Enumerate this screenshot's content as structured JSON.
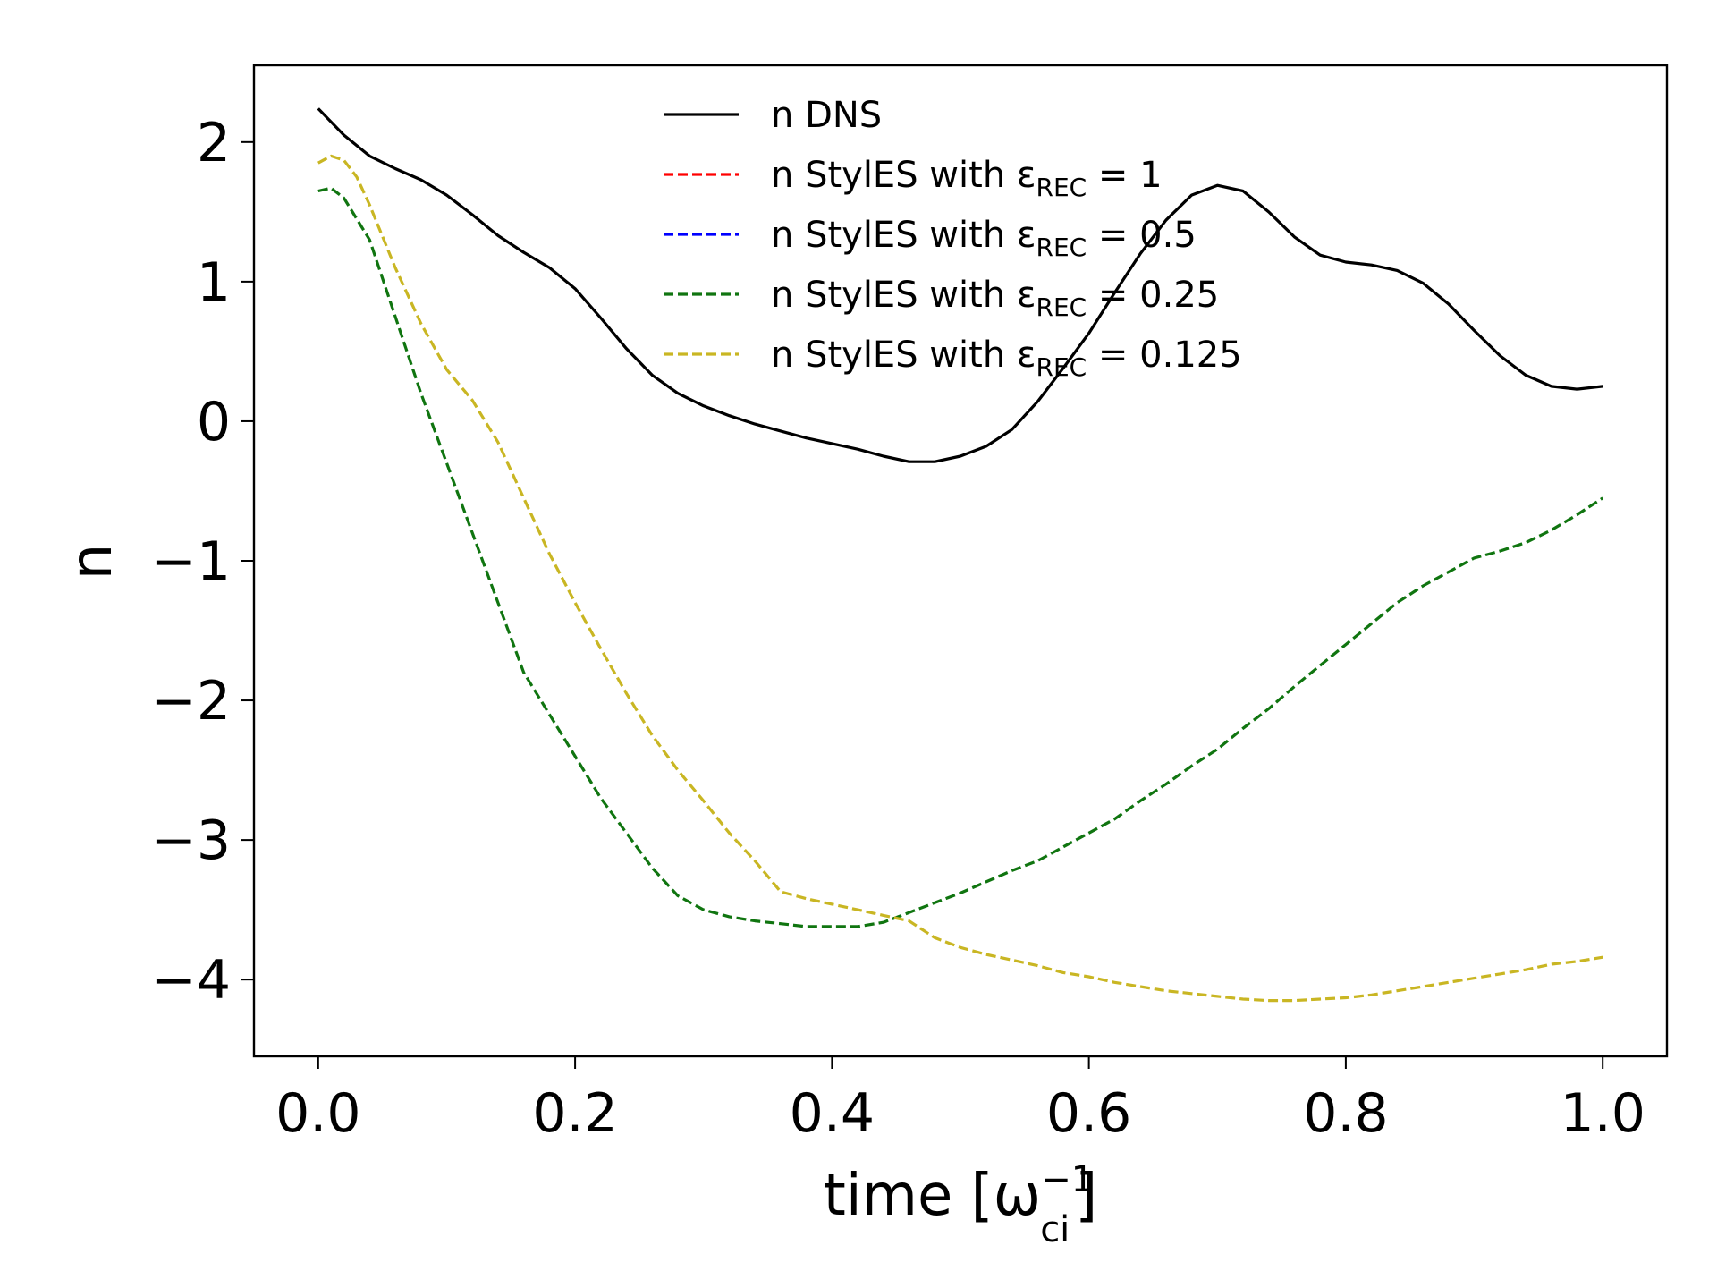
{
  "chart_data": {
    "type": "line",
    "xlabel": {
      "base": "time [ω",
      "sup": "−1",
      "sub": "ci",
      "close": "]"
    },
    "ylabel": "n",
    "xlim": [
      -0.05,
      1.05
    ],
    "ylim": [
      -4.55,
      2.55
    ],
    "x_ticks": [
      0.0,
      0.2,
      0.4,
      0.6,
      0.8,
      1.0
    ],
    "x_tick_labels": [
      "0.0",
      "0.2",
      "0.4",
      "0.6",
      "0.8",
      "1.0"
    ],
    "y_ticks": [
      2,
      1,
      0,
      -1,
      -2,
      -3,
      -4
    ],
    "y_tick_labels": [
      "2",
      "1",
      "0",
      "−1",
      "−2",
      "−3",
      "−4"
    ],
    "grid": false,
    "legend_position": "top-center",
    "series": [
      {
        "name": "n DNS",
        "legend": {
          "prefix": "n DNS",
          "sub": "",
          "suffix": ""
        },
        "color": "#000000",
        "dashed": false,
        "x": [
          0.0,
          0.02,
          0.04,
          0.06,
          0.08,
          0.1,
          0.12,
          0.14,
          0.16,
          0.18,
          0.2,
          0.22,
          0.24,
          0.26,
          0.28,
          0.3,
          0.32,
          0.34,
          0.36,
          0.38,
          0.4,
          0.42,
          0.44,
          0.46,
          0.48,
          0.5,
          0.52,
          0.54,
          0.56,
          0.58,
          0.6,
          0.62,
          0.64,
          0.66,
          0.68,
          0.7,
          0.72,
          0.74,
          0.76,
          0.78,
          0.8,
          0.82,
          0.84,
          0.86,
          0.88,
          0.9,
          0.92,
          0.94,
          0.96,
          0.98,
          1.0
        ],
        "y": [
          2.24,
          2.05,
          1.9,
          1.81,
          1.73,
          1.62,
          1.48,
          1.33,
          1.21,
          1.1,
          0.95,
          0.74,
          0.52,
          0.33,
          0.2,
          0.11,
          0.04,
          -0.02,
          -0.07,
          -0.12,
          -0.16,
          -0.2,
          -0.25,
          -0.29,
          -0.29,
          -0.25,
          -0.18,
          -0.06,
          0.14,
          0.38,
          0.63,
          0.92,
          1.2,
          1.44,
          1.62,
          1.69,
          1.65,
          1.5,
          1.32,
          1.19,
          1.14,
          1.12,
          1.08,
          0.99,
          0.84,
          0.65,
          0.47,
          0.33,
          0.25,
          0.23,
          0.25
        ]
      },
      {
        "name": "n StylES with ε_REC = 1",
        "legend": {
          "prefix": "n StylES with ε",
          "sub": "REC",
          "suffix": " = 1"
        },
        "color": "#ff0000",
        "dashed": true,
        "x": [],
        "y": []
      },
      {
        "name": "n StylES with ε_REC = 0.5",
        "legend": {
          "prefix": "n StylES with ε",
          "sub": "REC",
          "suffix": " = 0.5"
        },
        "color": "#0000ff",
        "dashed": true,
        "x": [],
        "y": []
      },
      {
        "name": "n StylES with ε_REC = 0.25",
        "legend": {
          "prefix": "n StylES with ε",
          "sub": "REC",
          "suffix": " = 0.25"
        },
        "color": "#107510",
        "dashed": true,
        "x": [
          0.0,
          0.01,
          0.02,
          0.04,
          0.06,
          0.08,
          0.1,
          0.12,
          0.14,
          0.16,
          0.18,
          0.2,
          0.22,
          0.24,
          0.26,
          0.28,
          0.3,
          0.32,
          0.34,
          0.36,
          0.38,
          0.4,
          0.42,
          0.44,
          0.46,
          0.48,
          0.5,
          0.52,
          0.54,
          0.56,
          0.58,
          0.6,
          0.62,
          0.64,
          0.66,
          0.68,
          0.7,
          0.72,
          0.74,
          0.76,
          0.78,
          0.8,
          0.82,
          0.84,
          0.86,
          0.88,
          0.9,
          0.92,
          0.94,
          0.96,
          0.98,
          1.0
        ],
        "y": [
          1.65,
          1.67,
          1.6,
          1.3,
          0.75,
          0.2,
          -0.3,
          -0.8,
          -1.3,
          -1.8,
          -2.1,
          -2.4,
          -2.7,
          -2.95,
          -3.2,
          -3.4,
          -3.5,
          -3.55,
          -3.58,
          -3.6,
          -3.62,
          -3.62,
          -3.62,
          -3.59,
          -3.52,
          -3.45,
          -3.38,
          -3.3,
          -3.22,
          -3.15,
          -3.05,
          -2.95,
          -2.85,
          -2.72,
          -2.6,
          -2.47,
          -2.35,
          -2.2,
          -2.06,
          -1.9,
          -1.75,
          -1.6,
          -1.45,
          -1.3,
          -1.18,
          -1.08,
          -0.98,
          -0.93,
          -0.87,
          -0.78,
          -0.67,
          -0.55
        ]
      },
      {
        "name": "n StylES with ε_REC = 0.125",
        "legend": {
          "prefix": "n StylES with ε",
          "sub": "REC",
          "suffix": " = 0.125"
        },
        "color": "#c9b623",
        "dashed": true,
        "x": [
          0.0,
          0.01,
          0.02,
          0.03,
          0.04,
          0.06,
          0.08,
          0.1,
          0.12,
          0.14,
          0.16,
          0.18,
          0.2,
          0.22,
          0.24,
          0.26,
          0.28,
          0.3,
          0.32,
          0.34,
          0.36,
          0.38,
          0.4,
          0.42,
          0.44,
          0.46,
          0.48,
          0.5,
          0.52,
          0.54,
          0.56,
          0.58,
          0.6,
          0.62,
          0.64,
          0.66,
          0.68,
          0.7,
          0.72,
          0.74,
          0.76,
          0.78,
          0.8,
          0.82,
          0.84,
          0.86,
          0.88,
          0.9,
          0.92,
          0.94,
          0.96,
          0.98,
          1.0
        ],
        "y": [
          1.85,
          1.9,
          1.87,
          1.75,
          1.55,
          1.1,
          0.7,
          0.37,
          0.15,
          -0.15,
          -0.55,
          -0.95,
          -1.3,
          -1.63,
          -1.95,
          -2.25,
          -2.5,
          -2.72,
          -2.95,
          -3.15,
          -3.37,
          -3.42,
          -3.46,
          -3.5,
          -3.54,
          -3.58,
          -3.7,
          -3.77,
          -3.82,
          -3.86,
          -3.9,
          -3.95,
          -3.98,
          -4.02,
          -4.05,
          -4.08,
          -4.1,
          -4.12,
          -4.14,
          -4.15,
          -4.15,
          -4.14,
          -4.13,
          -4.11,
          -4.08,
          -4.05,
          -4.02,
          -3.99,
          -3.96,
          -3.93,
          -3.89,
          -3.87,
          -3.84
        ]
      }
    ]
  }
}
